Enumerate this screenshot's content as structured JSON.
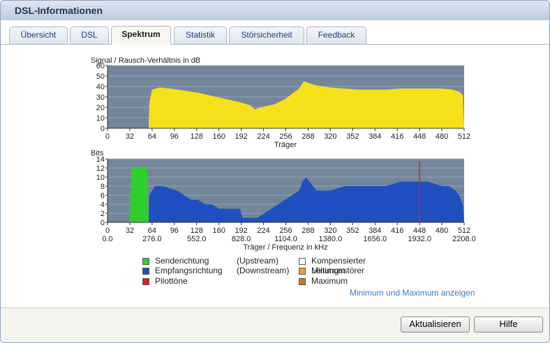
{
  "window": {
    "title": "DSL-Informationen"
  },
  "tabs": [
    {
      "label": "Übersicht",
      "active": false
    },
    {
      "label": "DSL",
      "active": false
    },
    {
      "label": "Spektrum",
      "active": true
    },
    {
      "label": "Statistik",
      "active": false
    },
    {
      "label": "Störsicherheit",
      "active": false
    },
    {
      "label": "Feedback",
      "active": false
    }
  ],
  "colors": {
    "plot_bg": "#73869a",
    "snr_fill": "#f5e11a",
    "upstream": "#2fce2f",
    "downstream": "#1f4fc0",
    "pilot": "#e02020",
    "kompensiert": "#ffffff",
    "minimum": "#f0a030",
    "maximum": "#c07a30"
  },
  "chart_data": [
    {
      "type": "area",
      "ylabel": "Signal / Rausch-Verhältnis in dB",
      "xlabel": "Träger",
      "xlim": [
        0,
        512
      ],
      "ylim": [
        0,
        60
      ],
      "yticks": [
        0,
        10,
        20,
        30,
        40,
        50,
        60
      ],
      "xticks": [
        0,
        32,
        64,
        96,
        128,
        160,
        192,
        224,
        256,
        288,
        320,
        352,
        384,
        416,
        448,
        480,
        512
      ],
      "grid": true,
      "series": [
        {
          "x": [
            0,
            59,
            60,
            64,
            75,
            90,
            110,
            130,
            150,
            170,
            190,
            205,
            212,
            215,
            220,
            240,
            255,
            265,
            275,
            282,
            290,
            300,
            320,
            340,
            360,
            380,
            400,
            420,
            440,
            460,
            480,
            495,
            505,
            510,
            512
          ],
          "y": [
            0,
            0,
            24,
            37,
            39,
            38,
            36,
            34,
            31,
            28,
            25,
            22,
            18,
            19,
            20,
            23,
            28,
            33,
            38,
            45,
            43,
            41,
            39,
            38,
            37,
            37,
            37,
            38,
            38,
            38,
            38,
            37,
            35,
            32,
            0
          ]
        }
      ]
    },
    {
      "type": "area",
      "ylabel": "Bits",
      "xlabel": "Träger / Frequenz in kHz",
      "xlim": [
        0,
        512
      ],
      "ylim": [
        0,
        14
      ],
      "yticks": [
        0,
        2,
        4,
        6,
        8,
        10,
        12,
        14
      ],
      "xticks": [
        0,
        32,
        64,
        96,
        128,
        160,
        192,
        224,
        256,
        288,
        320,
        352,
        384,
        416,
        448,
        480,
        512
      ],
      "freq_ticks": [
        "0.0",
        "276.0",
        "552.0",
        "828.0",
        "1104.0",
        "1380.0",
        "1656.0",
        "1932.0",
        "2208.0"
      ],
      "grid": true,
      "series": [
        {
          "name": "Senderichtung",
          "x": [
            32,
            34,
            35,
            56,
            57,
            59
          ],
          "y": [
            0,
            11,
            12,
            12,
            11,
            0
          ]
        },
        {
          "name": "Empfangsrichtung",
          "x": [
            59,
            60,
            64,
            68,
            80,
            100,
            110,
            120,
            130,
            140,
            150,
            160,
            175,
            190,
            194,
            200,
            215,
            225,
            235,
            245,
            255,
            265,
            275,
            280,
            285,
            290,
            300,
            320,
            340,
            360,
            380,
            400,
            420,
            440,
            460,
            480,
            490,
            500,
            505,
            510,
            512
          ],
          "y": [
            0,
            6,
            7,
            8,
            8,
            7,
            6,
            5,
            5,
            4,
            4,
            3,
            3,
            3,
            1,
            1,
            1,
            2,
            3,
            4,
            5,
            6,
            7,
            9,
            10,
            9,
            7,
            7,
            8,
            8,
            8,
            8,
            9,
            9,
            9,
            8,
            8,
            7,
            6,
            4,
            0
          ]
        },
        {
          "name": "Pilottöne",
          "pilot_x": 448
        }
      ]
    }
  ],
  "legend": {
    "senderichtung": "Senderichtung",
    "upstream": "(Upstream)",
    "empfangsrichtung": "Empfangsrichtung",
    "downstream": "(Downstream)",
    "pilottoene": "Pilottöne",
    "kompensiert": "Kompensierter Leitungsstörer",
    "minimum": "Minimum",
    "maximum": "Maximum"
  },
  "links": {
    "minmax": "Minimum und Maximum anzeigen"
  },
  "buttons": {
    "refresh": "Aktualisieren",
    "help": "Hilfe"
  }
}
